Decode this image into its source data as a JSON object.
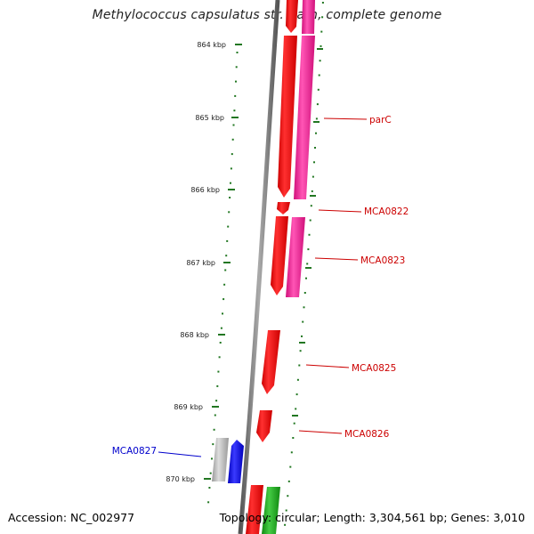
{
  "header": {
    "title": "Methylococcus capsulatus str. Bath, complete genome"
  },
  "footer": {
    "accession": "Accession: NC_002977",
    "summary": "Topology: circular; Length: 3,304,561 bp; Genes: 3,010"
  },
  "colors": {
    "backbone": "#777777",
    "ticks": "#227722",
    "cds_forward": "#ff1a1a",
    "cds_forward_alt": "#ff2aa0",
    "cds_grey": "#aaaaaa",
    "cds_blue": "#1a1aff",
    "cds_green": "#22aa22",
    "label_red": "#cc0000",
    "label_blue": "#0000cc"
  },
  "scale_labels": [
    "864 kbp",
    "865 kbp",
    "866 kbp",
    "867 kbp",
    "868 kbp",
    "869 kbp",
    "870 kbp"
  ],
  "genes": [
    {
      "id": "parC",
      "label": "parC",
      "color": "red"
    },
    {
      "id": "MCA0822",
      "label": "MCA0822",
      "color": "red"
    },
    {
      "id": "MCA0823",
      "label": "MCA0823",
      "color": "red"
    },
    {
      "id": "MCA0825",
      "label": "MCA0825",
      "color": "red"
    },
    {
      "id": "MCA0826",
      "label": "MCA0826",
      "color": "red"
    },
    {
      "id": "MCA0827",
      "label": "MCA0827",
      "color": "blue"
    }
  ]
}
